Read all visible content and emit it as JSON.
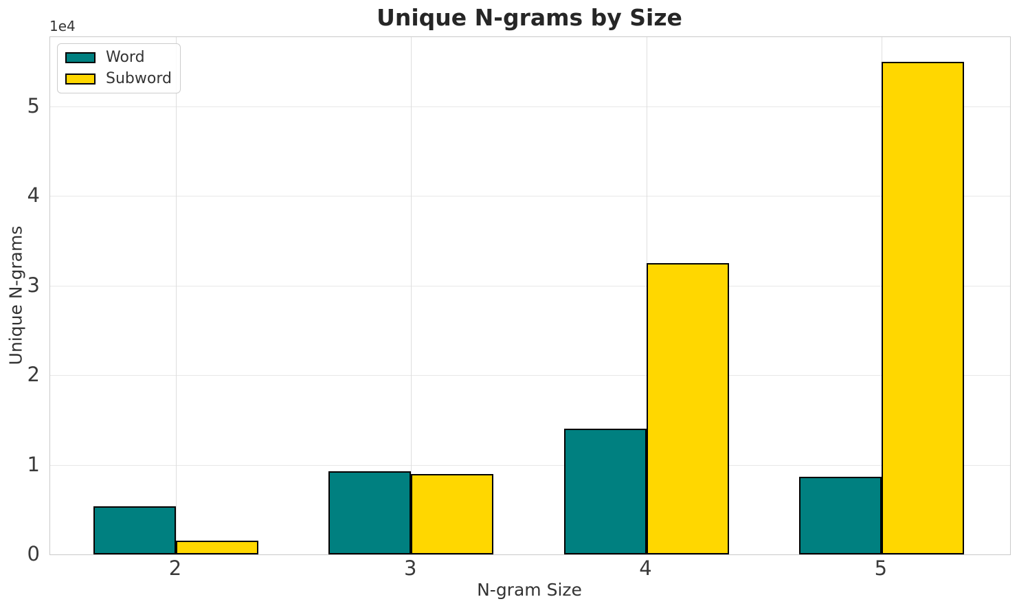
{
  "title": "Unique N-grams by Size",
  "chart_data": {
    "type": "bar",
    "title": "Unique N-grams by Size",
    "xlabel": "N-gram Size",
    "ylabel": "Unique N-grams",
    "y_offset_text": "1e4",
    "categories": [
      "2",
      "3",
      "4",
      "5"
    ],
    "series": [
      {
        "name": "Word",
        "color": "#008080",
        "values": [
          5400,
          9300,
          14000,
          8700
        ]
      },
      {
        "name": "Subword",
        "color": "#FFD700",
        "values": [
          1500,
          9000,
          32500,
          55000
        ]
      }
    ],
    "bar_edge_color": "#000000",
    "y_ticks": [
      {
        "label": "0",
        "value": 0
      },
      {
        "label": "1",
        "value": 10000
      },
      {
        "label": "2",
        "value": 20000
      },
      {
        "label": "3",
        "value": 30000
      },
      {
        "label": "4",
        "value": 40000
      },
      {
        "label": "5",
        "value": 50000
      }
    ],
    "ylim": [
      0,
      57750
    ],
    "grid": true,
    "legend_position": "upper left"
  },
  "legend": {
    "items": [
      {
        "label": "Word",
        "color": "#008080"
      },
      {
        "label": "Subword",
        "color": "#FFD700"
      }
    ]
  }
}
